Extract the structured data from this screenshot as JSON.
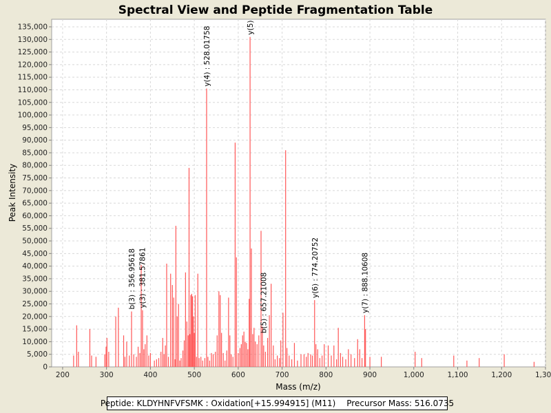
{
  "chart_data": {
    "type": "bar",
    "title": "Spectral View and Peptide Fragmentation Table",
    "xlabel": "Mass (m/z)",
    "ylabel": "Peak Intensity",
    "xlim": [
      175,
      1300
    ],
    "ylim": [
      0,
      138000
    ],
    "xticks": [
      200,
      300,
      400,
      500,
      600,
      700,
      800,
      900,
      1000,
      1100,
      1200,
      1300
    ],
    "xtick_labels": [
      "200",
      "300",
      "400",
      "500",
      "600",
      "700",
      "800",
      "900",
      "1,000",
      "1,100",
      "1,200",
      "1,300"
    ],
    "yticks": [
      0,
      5000,
      10000,
      15000,
      20000,
      25000,
      30000,
      35000,
      40000,
      45000,
      50000,
      55000,
      60000,
      65000,
      70000,
      75000,
      80000,
      85000,
      90000,
      95000,
      100000,
      105000,
      110000,
      115000,
      120000,
      125000,
      130000,
      135000
    ],
    "ytick_labels": [
      "0",
      "5,000",
      "10,000",
      "15,000",
      "20,000",
      "25,000",
      "30,000",
      "35,000",
      "40,000",
      "45,000",
      "50,000",
      "55,000",
      "60,000",
      "65,000",
      "70,000",
      "75,000",
      "80,000",
      "85,000",
      "90,000",
      "95,000",
      "100,000",
      "105,000",
      "110,000",
      "115,000",
      "120,000",
      "125,000",
      "130,000",
      "135,000"
    ],
    "grid": true,
    "peaks": [
      [
        225,
        4500
      ],
      [
        232,
        16500
      ],
      [
        236,
        6000
      ],
      [
        262,
        15000
      ],
      [
        266,
        4500
      ],
      [
        276,
        4000
      ],
      [
        296,
        5000
      ],
      [
        299,
        8000
      ],
      [
        301,
        11500
      ],
      [
        305,
        6000
      ],
      [
        321,
        20000
      ],
      [
        327,
        23500
      ],
      [
        339,
        12500
      ],
      [
        342,
        4000
      ],
      [
        346,
        10000
      ],
      [
        352,
        4500
      ],
      [
        357,
        22000
      ],
      [
        362,
        5000
      ],
      [
        368,
        4000
      ],
      [
        372,
        8000
      ],
      [
        376,
        5500
      ],
      [
        379,
        40500
      ],
      [
        382,
        22500
      ],
      [
        385,
        7000
      ],
      [
        388,
        9000
      ],
      [
        392,
        12500
      ],
      [
        396,
        4500
      ],
      [
        400,
        5500
      ],
      [
        409,
        2500
      ],
      [
        414,
        3000
      ],
      [
        419,
        3500
      ],
      [
        424,
        6000
      ],
      [
        428,
        11500
      ],
      [
        431,
        5000
      ],
      [
        434,
        8500
      ],
      [
        437,
        41000
      ],
      [
        441,
        4000
      ],
      [
        446,
        37000
      ],
      [
        450,
        32500
      ],
      [
        453,
        27500
      ],
      [
        456,
        3000
      ],
      [
        458,
        56000
      ],
      [
        461,
        20000
      ],
      [
        464,
        25000
      ],
      [
        467,
        2500
      ],
      [
        470,
        3500
      ],
      [
        474,
        6500
      ],
      [
        477,
        10500
      ],
      [
        480,
        37500
      ],
      [
        483,
        18000
      ],
      [
        486,
        12500
      ],
      [
        488,
        79000
      ],
      [
        490,
        13000
      ],
      [
        492,
        28500
      ],
      [
        494,
        29000
      ],
      [
        496,
        28000
      ],
      [
        498,
        20000
      ],
      [
        500,
        13500
      ],
      [
        502,
        28500
      ],
      [
        505,
        4000
      ],
      [
        508,
        37000
      ],
      [
        511,
        3500
      ],
      [
        515,
        4000
      ],
      [
        519,
        2500
      ],
      [
        524,
        3500
      ],
      [
        528,
        110500
      ],
      [
        531,
        4000
      ],
      [
        535,
        2500
      ],
      [
        539,
        5500
      ],
      [
        543,
        5000
      ],
      [
        548,
        6000
      ],
      [
        552,
        12500
      ],
      [
        556,
        30000
      ],
      [
        559,
        28500
      ],
      [
        562,
        13500
      ],
      [
        566,
        5500
      ],
      [
        570,
        2500
      ],
      [
        574,
        6500
      ],
      [
        578,
        27500
      ],
      [
        581,
        12500
      ],
      [
        584,
        5000
      ],
      [
        588,
        4000
      ],
      [
        593,
        89000
      ],
      [
        596,
        43500
      ],
      [
        600,
        5500
      ],
      [
        604,
        7500
      ],
      [
        607,
        9000
      ],
      [
        610,
        12500
      ],
      [
        613,
        14000
      ],
      [
        616,
        10000
      ],
      [
        619,
        9500
      ],
      [
        622,
        7000
      ],
      [
        625,
        27000
      ],
      [
        627,
        131000
      ],
      [
        630,
        47000
      ],
      [
        633,
        13000
      ],
      [
        636,
        15500
      ],
      [
        639,
        10000
      ],
      [
        643,
        9000
      ],
      [
        647,
        12500
      ],
      [
        652,
        54000
      ],
      [
        655,
        16000
      ],
      [
        658,
        8500
      ],
      [
        662,
        6000
      ],
      [
        667,
        11500
      ],
      [
        671,
        20500
      ],
      [
        675,
        33000
      ],
      [
        680,
        8500
      ],
      [
        684,
        3000
      ],
      [
        689,
        4500
      ],
      [
        694,
        3500
      ],
      [
        697,
        10500
      ],
      [
        702,
        21500
      ],
      [
        708,
        86000
      ],
      [
        711,
        7500
      ],
      [
        716,
        4500
      ],
      [
        722,
        3000
      ],
      [
        728,
        9500
      ],
      [
        735,
        2500
      ],
      [
        743,
        5000
      ],
      [
        750,
        5000
      ],
      [
        755,
        4000
      ],
      [
        759,
        5500
      ],
      [
        765,
        5000
      ],
      [
        769,
        4500
      ],
      [
        774,
        26500
      ],
      [
        777,
        9000
      ],
      [
        781,
        7000
      ],
      [
        786,
        3500
      ],
      [
        791,
        4500
      ],
      [
        796,
        9000
      ],
      [
        805,
        8500
      ],
      [
        812,
        4500
      ],
      [
        818,
        8500
      ],
      [
        824,
        3000
      ],
      [
        828,
        15500
      ],
      [
        833,
        5500
      ],
      [
        838,
        4000
      ],
      [
        845,
        3000
      ],
      [
        851,
        7000
      ],
      [
        857,
        5000
      ],
      [
        865,
        3500
      ],
      [
        872,
        11000
      ],
      [
        877,
        7000
      ],
      [
        882,
        3500
      ],
      [
        888,
        20500
      ],
      [
        890,
        15000
      ],
      [
        900,
        4000
      ],
      [
        926,
        4000
      ],
      [
        1003,
        6000
      ],
      [
        1018,
        3500
      ],
      [
        1091,
        4500
      ],
      [
        1121,
        2500
      ],
      [
        1149,
        3500
      ],
      [
        1206,
        5000
      ],
      [
        1274,
        2000
      ]
    ],
    "annotations": [
      {
        "x": 356.95618,
        "y": 22000,
        "label": "b(3) : 356.95618"
      },
      {
        "x": 381.57861,
        "y": 22500,
        "label": "y(3) : 381.57861"
      },
      {
        "x": 528.01758,
        "y": 110500,
        "label": "y(4) : 528.01758"
      },
      {
        "x": 627.0,
        "y": 131000,
        "label": "y(5)"
      },
      {
        "x": 657.21008,
        "y": 12500,
        "label": "b(5) : 657.21008"
      },
      {
        "x": 774.20752,
        "y": 26500,
        "label": "y(6) : 774.20752"
      },
      {
        "x": 888.10608,
        "y": 20500,
        "label": "y(7) : 888.10608"
      }
    ],
    "bar_color": "#ff5555"
  },
  "legend": {
    "peptide": "Peptide: KLDYHNFVFSMK : Oxidation[+15.994915] (M11)",
    "precursor": "Precursor Mass: 516.0735"
  }
}
